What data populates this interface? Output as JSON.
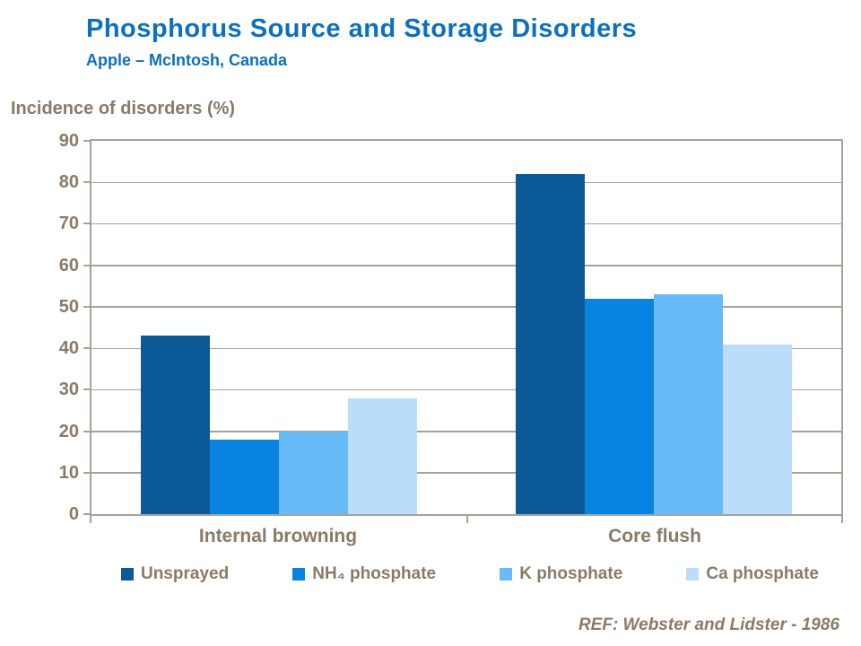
{
  "header": {
    "title": "Phosphorus Source and Storage Disorders",
    "subtitle": "Apple – McIntosh, Canada"
  },
  "reference": "REF: Webster and Lidster - 1986",
  "colors": {
    "title_blue": "#0c70bd",
    "text_brown": "#8a7a67",
    "frame_gray": "#aaa196",
    "background": "#ffffff"
  },
  "chart_data": {
    "type": "bar",
    "title": "Phosphorus Source and Storage Disorders",
    "subtitle": "Apple – McIntosh, Canada",
    "ylabel": "Incidence of disorders (%)",
    "xlabel": "",
    "categories": [
      "Internal browning",
      "Core flush"
    ],
    "series": [
      {
        "name": "Unsprayed",
        "color": "#0b5a97",
        "values": [
          43,
          82
        ]
      },
      {
        "name": "NH₄ phosphate",
        "color": "#0983e2",
        "values": [
          18,
          52
        ]
      },
      {
        "name": "K phosphate",
        "color": "#68bbf9",
        "values": [
          20,
          53
        ]
      },
      {
        "name": "Ca phosphate",
        "color": "#b9ddfb",
        "values": [
          28,
          41
        ]
      }
    ],
    "ylim": [
      0,
      90
    ],
    "ytick_interval": 10,
    "yticks": [
      0,
      10,
      20,
      30,
      40,
      50,
      60,
      70,
      80,
      90
    ],
    "grid": true,
    "legend_position": "bottom"
  }
}
